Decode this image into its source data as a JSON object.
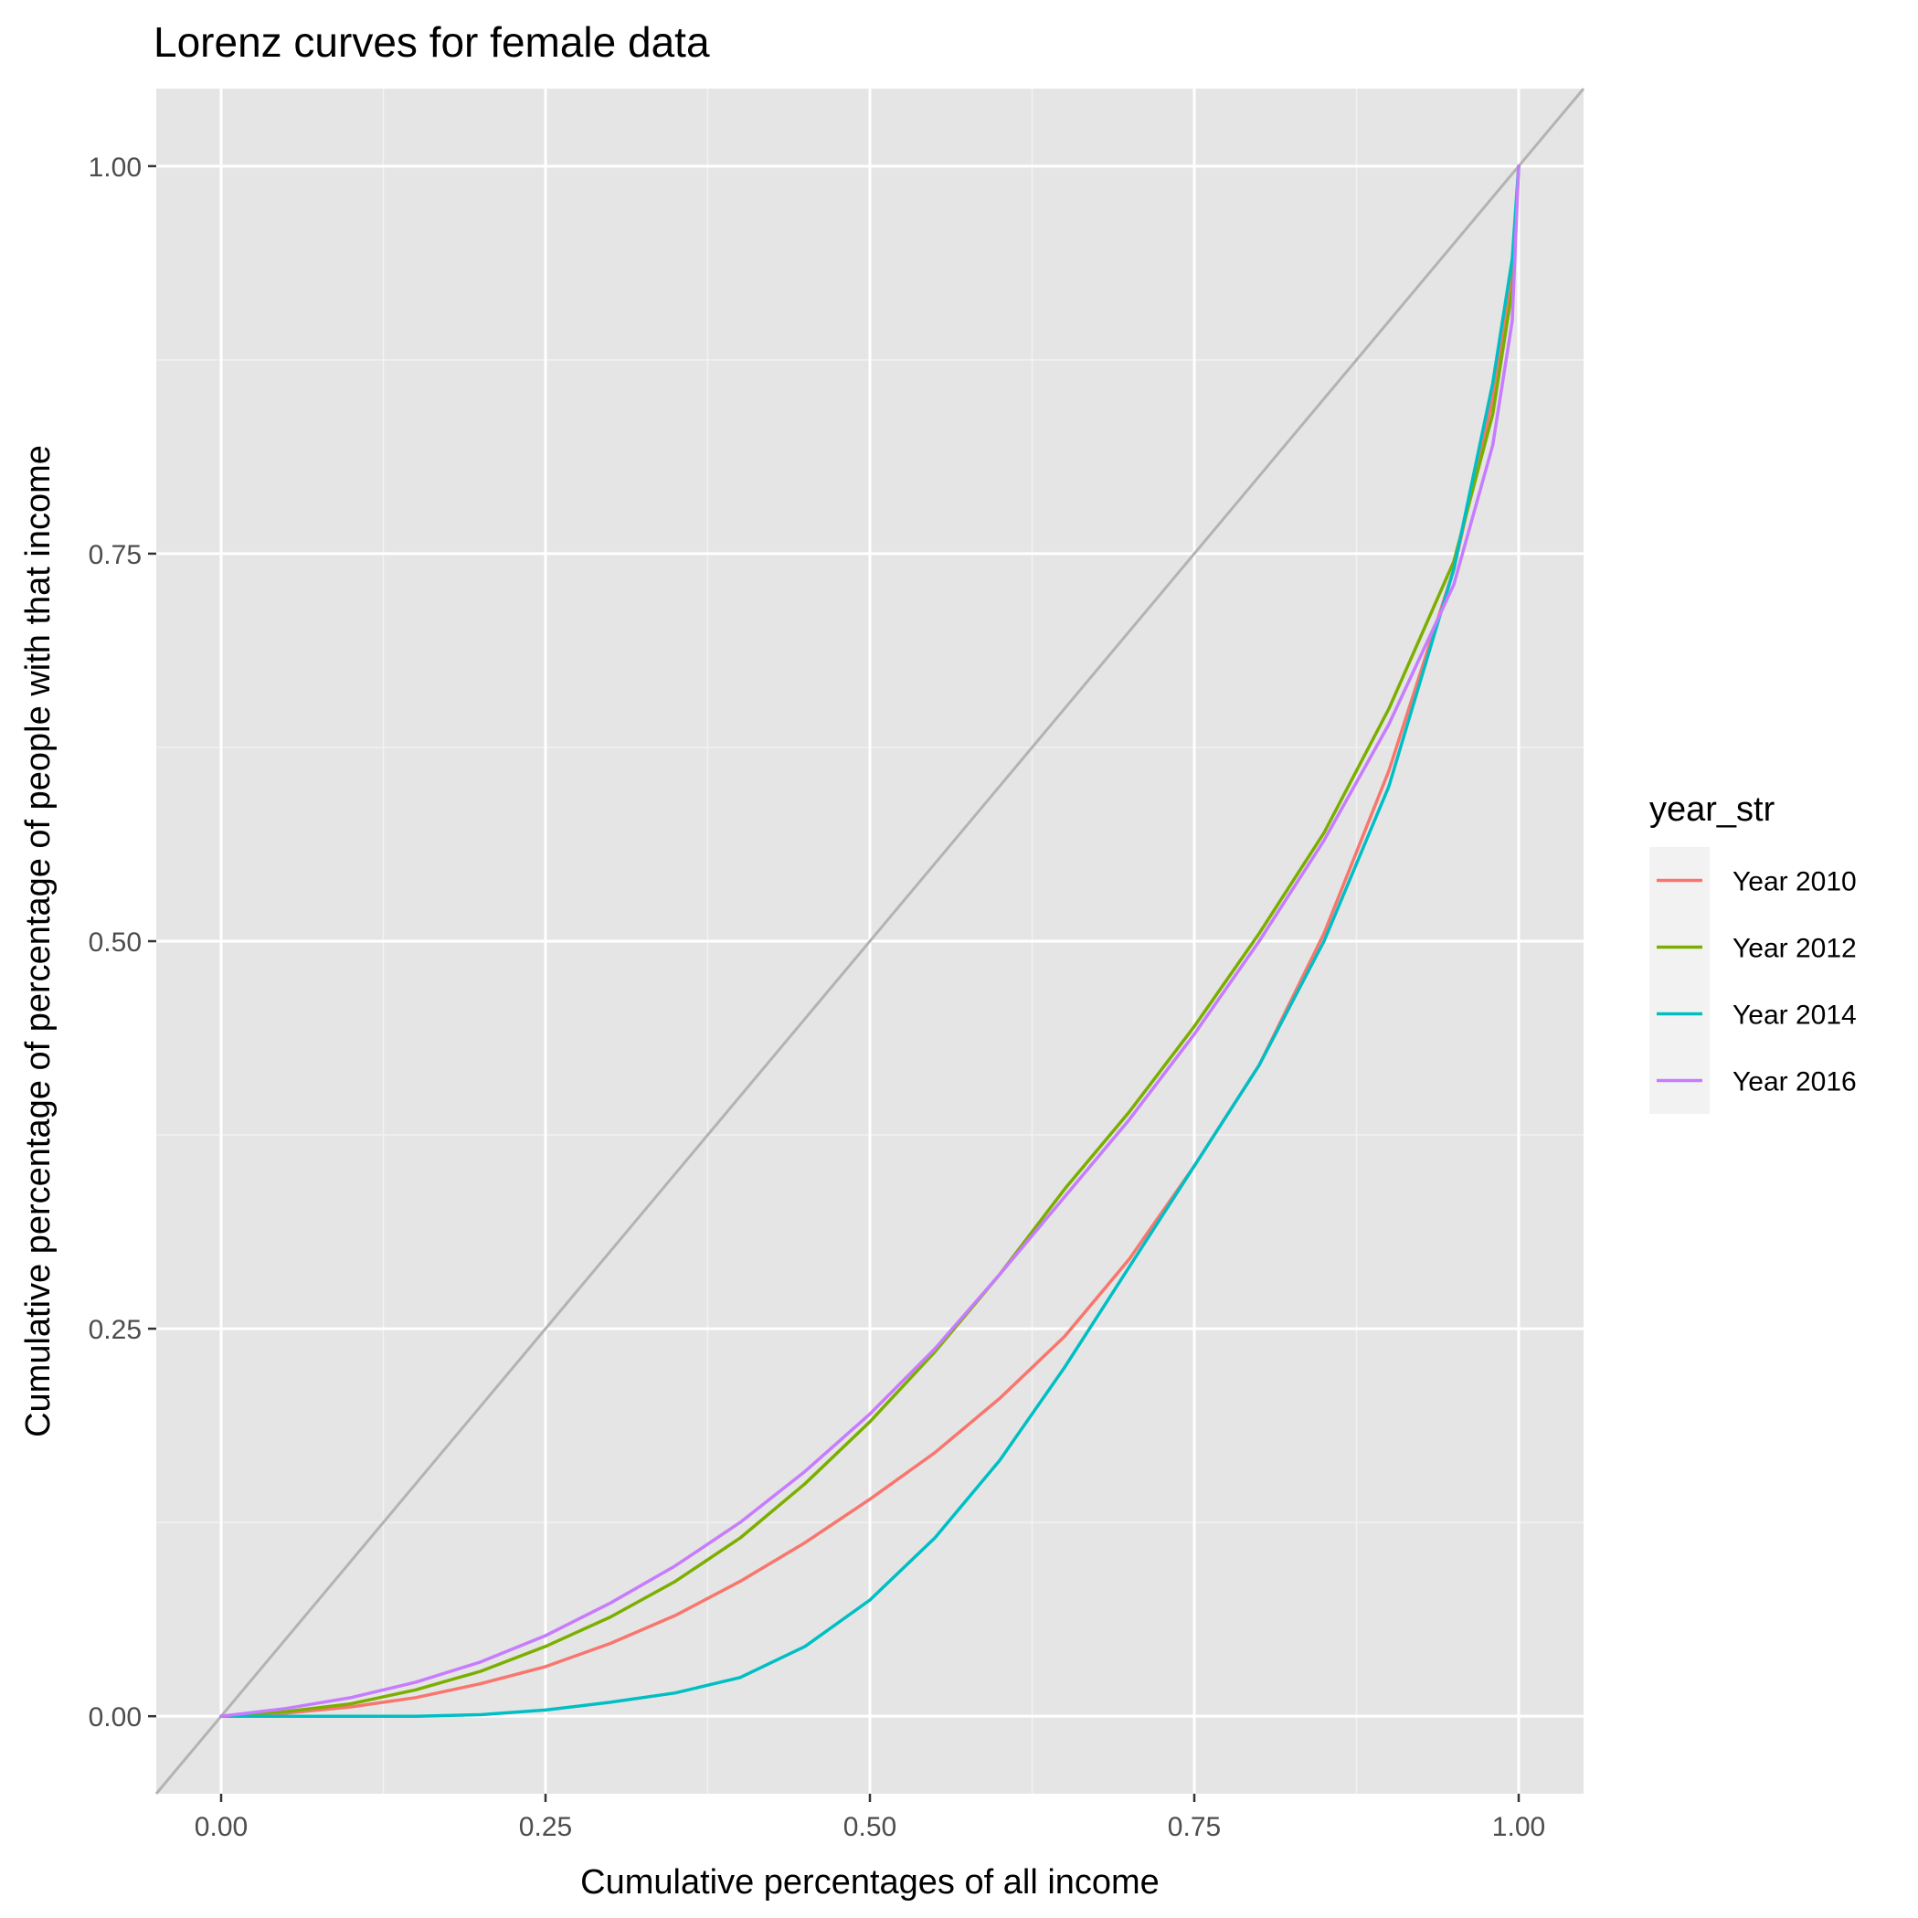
{
  "chart_data": {
    "type": "line",
    "title": "Lorenz curves for female data",
    "xlabel": "Cumulative percentages of all income",
    "ylabel": "Cumulative percentage of percentage of people with that income",
    "xlim": [
      -0.05,
      1.05
    ],
    "ylim": [
      -0.05,
      1.05
    ],
    "x_ticks": [
      0,
      0.25,
      0.5,
      0.75,
      1
    ],
    "x_tick_labels": [
      "0.00",
      "0.25",
      "0.50",
      "0.75",
      "1.00"
    ],
    "y_ticks": [
      0,
      0.25,
      0.5,
      0.75,
      1
    ],
    "y_tick_labels": [
      "0.00",
      "0.25",
      "0.50",
      "0.75",
      "1.00"
    ],
    "grid": true,
    "reference_line": {
      "x": [
        0,
        1
      ],
      "y": [
        0,
        1
      ],
      "color": "#b3b3b3"
    },
    "legend": {
      "title": "year_str",
      "position": "right"
    },
    "series": [
      {
        "name": "Year 2010",
        "color": "#F8766D",
        "x": [
          0,
          0.05,
          0.1,
          0.15,
          0.2,
          0.25,
          0.3,
          0.35,
          0.4,
          0.45,
          0.5,
          0.55,
          0.6,
          0.65,
          0.7,
          0.75,
          0.8,
          0.85,
          0.9,
          0.95,
          0.98,
          0.995,
          1.0
        ],
        "y": [
          0,
          0.002,
          0.006,
          0.012,
          0.021,
          0.032,
          0.047,
          0.065,
          0.087,
          0.112,
          0.14,
          0.17,
          0.205,
          0.245,
          0.295,
          0.355,
          0.42,
          0.505,
          0.61,
          0.74,
          0.85,
          0.93,
          1.0
        ]
      },
      {
        "name": "Year 2012",
        "color": "#7CAE00",
        "x": [
          0,
          0.05,
          0.1,
          0.15,
          0.2,
          0.25,
          0.3,
          0.35,
          0.4,
          0.45,
          0.5,
          0.55,
          0.6,
          0.65,
          0.7,
          0.75,
          0.8,
          0.85,
          0.9,
          0.95,
          0.98,
          0.995,
          1.0
        ],
        "y": [
          0,
          0.003,
          0.008,
          0.017,
          0.029,
          0.045,
          0.064,
          0.087,
          0.115,
          0.15,
          0.19,
          0.235,
          0.285,
          0.34,
          0.39,
          0.445,
          0.505,
          0.57,
          0.65,
          0.745,
          0.84,
          0.92,
          1.0
        ]
      },
      {
        "name": "Year 2014",
        "color": "#00BFC4",
        "x": [
          0,
          0.05,
          0.1,
          0.15,
          0.2,
          0.25,
          0.3,
          0.35,
          0.4,
          0.45,
          0.5,
          0.55,
          0.6,
          0.65,
          0.7,
          0.75,
          0.8,
          0.85,
          0.9,
          0.95,
          0.98,
          0.995,
          1.0
        ],
        "y": [
          0,
          0,
          0,
          0,
          0.001,
          0.004,
          0.009,
          0.015,
          0.025,
          0.045,
          0.075,
          0.115,
          0.165,
          0.225,
          0.29,
          0.355,
          0.42,
          0.5,
          0.6,
          0.74,
          0.86,
          0.94,
          1.0
        ]
      },
      {
        "name": "Year 2016",
        "color": "#C77CFF",
        "x": [
          0,
          0.05,
          0.1,
          0.15,
          0.2,
          0.25,
          0.3,
          0.35,
          0.4,
          0.45,
          0.5,
          0.55,
          0.6,
          0.65,
          0.7,
          0.75,
          0.8,
          0.85,
          0.9,
          0.95,
          0.98,
          0.995,
          1.0
        ],
        "y": [
          0,
          0.005,
          0.012,
          0.022,
          0.035,
          0.052,
          0.073,
          0.097,
          0.125,
          0.158,
          0.195,
          0.237,
          0.285,
          0.335,
          0.385,
          0.44,
          0.5,
          0.565,
          0.64,
          0.73,
          0.82,
          0.9,
          1.0
        ]
      }
    ]
  }
}
